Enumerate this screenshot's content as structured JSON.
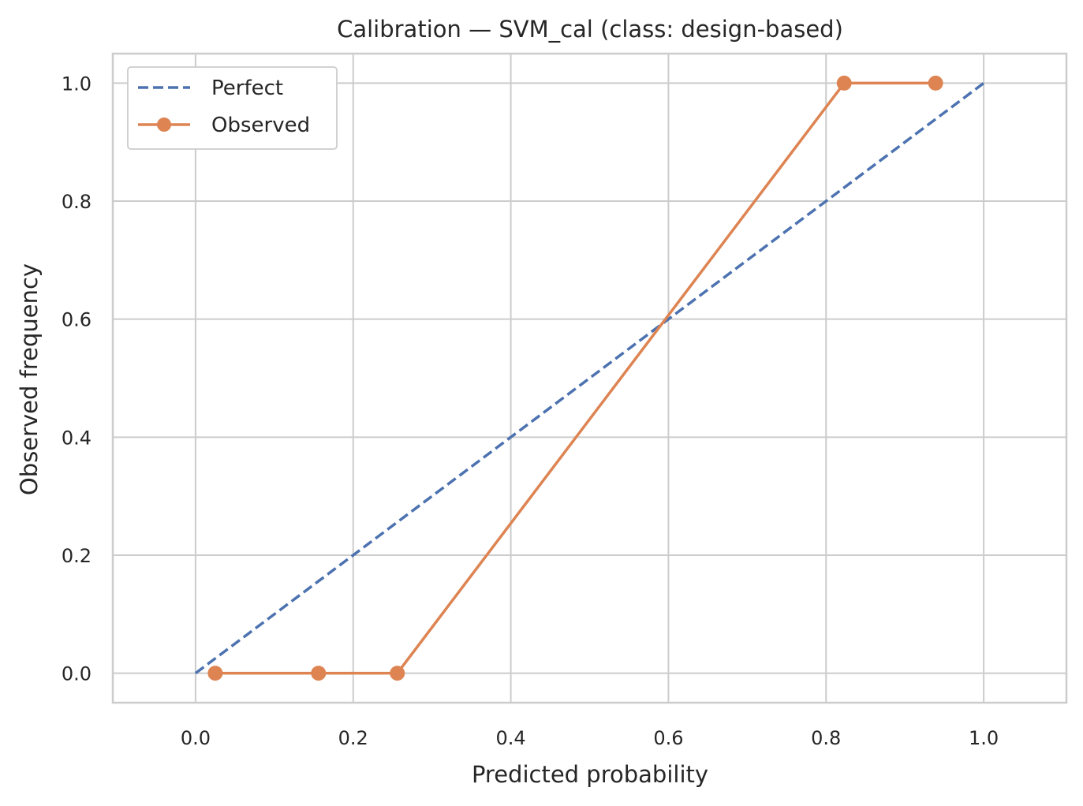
{
  "chart_data": {
    "type": "line",
    "title": "Calibration — SVM_cal (class: design-based)",
    "xlabel": "Predicted probability",
    "ylabel": "Observed frequency",
    "xlim": [
      -0.105,
      1.105
    ],
    "ylim": [
      -0.05,
      1.05
    ],
    "xticks": [
      0.0,
      0.2,
      0.4,
      0.6,
      0.8,
      1.0
    ],
    "yticks": [
      0.0,
      0.2,
      0.4,
      0.6,
      0.8,
      1.0
    ],
    "xtick_labels": [
      "0.0",
      "0.2",
      "0.4",
      "0.6",
      "0.8",
      "1.0"
    ],
    "ytick_labels": [
      "0.0",
      "0.2",
      "0.4",
      "0.6",
      "0.8",
      "1.0"
    ],
    "grid": true,
    "legend_position": "top-left",
    "series": [
      {
        "name": "Perfect",
        "style": "dashed",
        "color": "#4c72b0",
        "x": [
          0.0,
          1.0
        ],
        "y": [
          0.0,
          1.0
        ]
      },
      {
        "name": "Observed",
        "style": "solid-with-markers",
        "color": "#dd8452",
        "x": [
          0.025,
          0.156,
          0.256,
          0.823,
          0.939
        ],
        "y": [
          0.0,
          0.0,
          0.0,
          1.0,
          1.0
        ]
      }
    ]
  }
}
